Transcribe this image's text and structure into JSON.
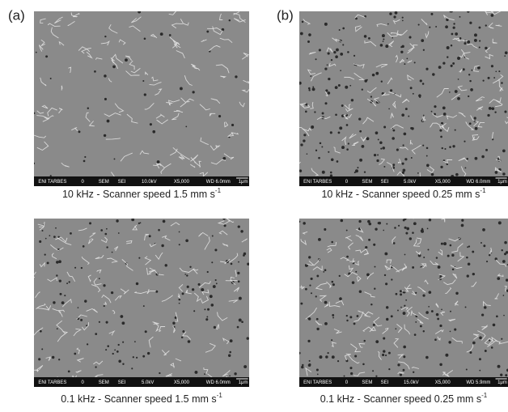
{
  "panel_labels": [
    "(a)",
    "(b)"
  ],
  "images": [
    {
      "info_bar": [
        "ENI TARBES",
        "0",
        "SEM",
        "SEI",
        "10.0kV",
        "X5,000",
        "WD 6.0mm",
        "1μm"
      ],
      "caption": "10 kHz - Scanner speed 1.5 mm s",
      "caption_sup": "-1"
    },
    {
      "info_bar": [
        "ENI TARBES",
        "0",
        "SEM",
        "SEI",
        "5.0kV",
        "X5,000",
        "WD 6.0mm",
        "1μm"
      ],
      "caption": "10 kHz - Scanner speed 0.25 mm s",
      "caption_sup": "-1"
    },
    {
      "info_bar": [
        "ENI TARBES",
        "0",
        "SEM",
        "SEI",
        "5.0kV",
        "X5,000",
        "WD 6.0mm",
        "1μm"
      ],
      "caption": "0.1 kHz - Scanner speed 1.5 mm s",
      "caption_sup": "-1"
    },
    {
      "info_bar": [
        "ENI TARBES",
        "0",
        "SEM",
        "SEI",
        "15.0kV",
        "X5,000",
        "WD 5.9mm",
        "1μm"
      ],
      "caption": "0.1 kHz - Scanner speed 0.25 mm s",
      "caption_sup": "-1"
    }
  ]
}
